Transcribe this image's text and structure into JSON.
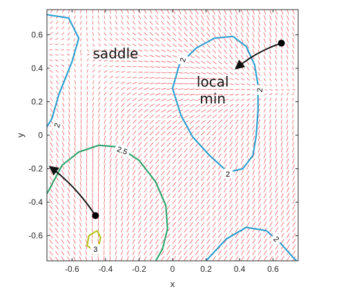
{
  "chart_data": {
    "type": "quiver-contour",
    "xlabel": "x",
    "ylabel": "y",
    "xlim": [
      -0.75,
      0.75
    ],
    "ylim": [
      -0.75,
      0.75
    ],
    "xticks": [
      -0.6,
      -0.4,
      -0.2,
      0,
      0.2,
      0.4,
      0.6
    ],
    "yticks": [
      -0.6,
      -0.4,
      -0.2,
      0,
      0.2,
      0.4,
      0.6
    ],
    "xtick_labels": [
      "-0.6",
      "-0.4",
      "-0.2",
      "0",
      "0.2",
      "0.4",
      "0.6"
    ],
    "ytick_labels": [
      "-0.6",
      "-0.4",
      "-0.2",
      "0",
      "0.2",
      "0.4",
      "0.6"
    ],
    "grid": false,
    "vector_field_color": "#e8202a",
    "contours": [
      {
        "level": "2",
        "color": "#2e9fd0",
        "points": [
          [
            -0.75,
            0.72
          ],
          [
            -0.62,
            0.7
          ],
          [
            -0.56,
            0.58
          ],
          [
            -0.6,
            0.44
          ],
          [
            -0.68,
            0.24
          ],
          [
            -0.72,
            0.1
          ],
          [
            -0.75,
            0.05
          ]
        ]
      },
      {
        "level": "2",
        "color": "#2e9fd0",
        "points": [
          [
            0.33,
            -0.22
          ],
          [
            0.22,
            -0.12
          ],
          [
            0.12,
            -0.01
          ],
          [
            0.05,
            0.12
          ],
          [
            0.0,
            0.28
          ],
          [
            0.04,
            0.42
          ],
          [
            0.14,
            0.52
          ],
          [
            0.25,
            0.58
          ],
          [
            0.36,
            0.59
          ],
          [
            0.44,
            0.53
          ],
          [
            0.49,
            0.42
          ],
          [
            0.51,
            0.3
          ],
          [
            0.51,
            0.15
          ],
          [
            0.5,
            0.0
          ],
          [
            0.48,
            -0.12
          ],
          [
            0.42,
            -0.2
          ],
          [
            0.33,
            -0.22
          ]
        ]
      },
      {
        "level": "2",
        "color": "#2e9fd0",
        "points": [
          [
            0.2,
            -0.75
          ],
          [
            0.32,
            -0.62
          ],
          [
            0.44,
            -0.55
          ],
          [
            0.56,
            -0.57
          ],
          [
            0.64,
            -0.64
          ],
          [
            0.72,
            -0.73
          ],
          [
            0.74,
            -0.75
          ]
        ]
      },
      {
        "level": "2.5",
        "color": "#2fa56e",
        "points": [
          [
            -0.75,
            -0.35
          ],
          [
            -0.66,
            -0.18
          ],
          [
            -0.56,
            -0.1
          ],
          [
            -0.44,
            -0.06
          ],
          [
            -0.32,
            -0.07
          ],
          [
            -0.2,
            -0.15
          ],
          [
            -0.1,
            -0.28
          ],
          [
            -0.04,
            -0.42
          ],
          [
            -0.03,
            -0.56
          ],
          [
            -0.06,
            -0.68
          ],
          [
            -0.1,
            -0.75
          ]
        ]
      },
      {
        "level": "3",
        "color": "#b5c51a",
        "points": [
          [
            -0.45,
            -0.57
          ],
          [
            -0.5,
            -0.6
          ],
          [
            -0.51,
            -0.66
          ],
          [
            -0.48,
            -0.68
          ],
          [
            -0.44,
            -0.66
          ],
          [
            -0.43,
            -0.61
          ],
          [
            -0.45,
            -0.57
          ]
        ]
      }
    ],
    "contour_labels": [
      {
        "text": "2",
        "x": -0.69,
        "y": 0.06,
        "rotate": -70
      },
      {
        "text": "2",
        "x": 0.06,
        "y": 0.45,
        "rotate": -75
      },
      {
        "text": "2",
        "x": 0.52,
        "y": 0.27,
        "rotate": -85
      },
      {
        "text": "2",
        "x": 0.33,
        "y": -0.23,
        "rotate": 0
      },
      {
        "text": "2",
        "x": 0.62,
        "y": -0.62,
        "rotate": 45
      },
      {
        "text": "2.5",
        "x": -0.3,
        "y": -0.09,
        "rotate": 20
      },
      {
        "text": "3",
        "x": -0.46,
        "y": -0.68,
        "rotate": 0
      }
    ],
    "annotations": [
      {
        "text": "saddle",
        "x": -0.34,
        "y": 0.46
      },
      {
        "text": "local",
        "x": 0.24,
        "y": 0.29
      },
      {
        "text": "min",
        "x": 0.24,
        "y": 0.19
      }
    ],
    "paths": [
      {
        "name": "arrow-to-local-min",
        "start": [
          0.65,
          0.55
        ],
        "ctrl": [
          0.5,
          0.5
        ],
        "end": [
          0.38,
          0.4
        ]
      },
      {
        "name": "arrow-from-start",
        "start": [
          -0.46,
          -0.48
        ],
        "ctrl": [
          -0.58,
          -0.3
        ],
        "end": [
          -0.73,
          -0.19
        ]
      }
    ]
  }
}
